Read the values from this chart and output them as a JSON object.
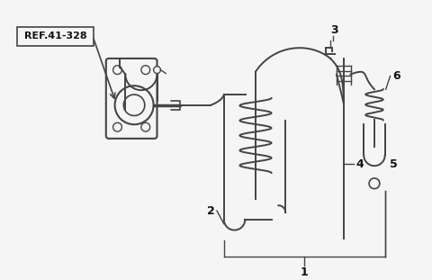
{
  "background_color": "#f5f5f5",
  "line_color": "#444444",
  "label_color": "#111111",
  "ref_text": "REF.41-328",
  "fig_width": 4.8,
  "fig_height": 3.11,
  "dpi": 100
}
